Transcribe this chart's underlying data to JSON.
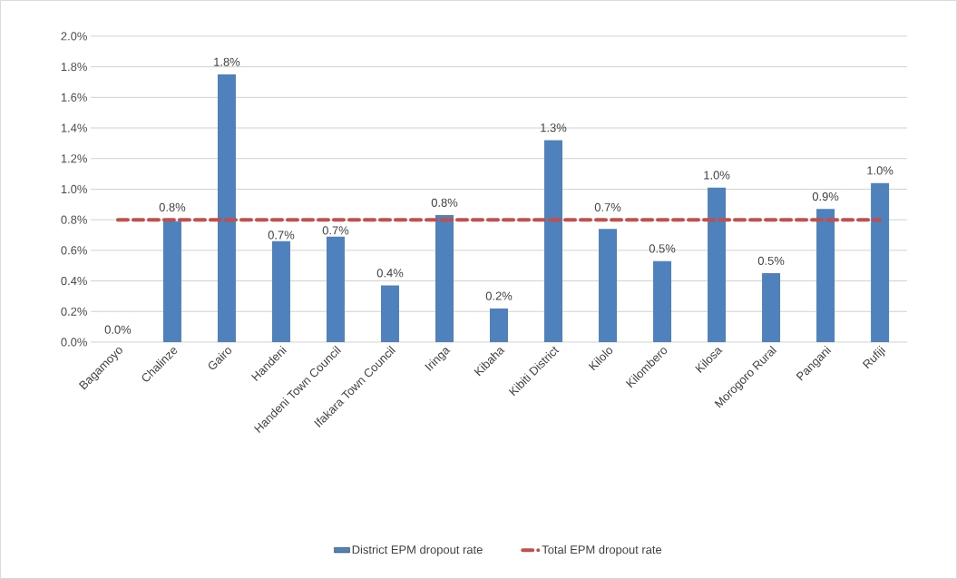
{
  "chart_data": {
    "type": "bar",
    "categories": [
      "Bagamoyo",
      "Chalinze",
      "Gairo",
      "Handeni",
      "Handeni Town Council",
      "Ifakara Town Council",
      "Iringa",
      "Kibaha",
      "Kibiti District",
      "Kilolo",
      "Kilombero",
      "Kilosa",
      "Morogoro Rural",
      "Pangani",
      "Rufiji"
    ],
    "series": [
      {
        "name": "District EPM dropout rate",
        "color": "#4f81bd",
        "values": [
          0,
          0.79,
          1.75,
          0.66,
          0.69,
          0.37,
          0.83,
          0.22,
          1.32,
          0.74,
          0.53,
          1.01,
          0.45,
          0.87,
          1.04
        ],
        "value_labels": [
          "0.0%",
          "0.8%",
          "1.8%",
          "0.7%",
          "0.7%",
          "0.4%",
          "0.8%",
          "0.2%",
          "1.3%",
          "0.7%",
          "0.5%",
          "1.0%",
          "0.5%",
          "0.9%",
          "1.0%"
        ]
      },
      {
        "name": "Total EPM dropout rate",
        "type": "line",
        "color": "#c0504d",
        "line_style": "dashed",
        "marker": "none",
        "values": [
          0.8,
          0.8,
          0.8,
          0.8,
          0.8,
          0.8,
          0.8,
          0.8,
          0.8,
          0.8,
          0.8,
          0.8,
          0.8,
          0.8,
          0.8
        ]
      }
    ],
    "ylim": [
      0,
      2
    ],
    "yticks": [
      {
        "value": 0,
        "label": "0.0%"
      },
      {
        "value": 0.2,
        "label": "0.2%"
      },
      {
        "value": 0.4,
        "label": "0.4%"
      },
      {
        "value": 0.6,
        "label": "0.6%"
      },
      {
        "value": 0.8,
        "label": "0.8%"
      },
      {
        "value": 1.0,
        "label": "1.0%"
      },
      {
        "value": 1.2,
        "label": "1.2%"
      },
      {
        "value": 1.4,
        "label": "1.4%"
      },
      {
        "value": 1.6,
        "label": "1.6%"
      },
      {
        "value": 1.8,
        "label": "1.8%"
      },
      {
        "value": 2.0,
        "label": "2.0%"
      }
    ],
    "grid": "y",
    "legend": "bottom"
  }
}
